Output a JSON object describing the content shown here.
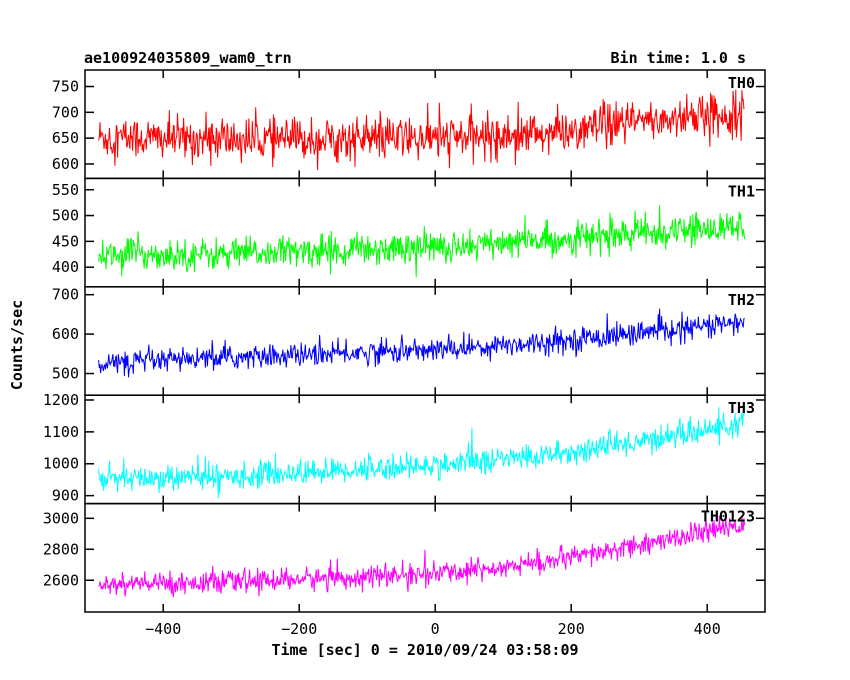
{
  "header": {
    "title": "ae100924035809_wam0_trn",
    "bin_time": "Bin time: 1.0 s"
  },
  "chart_data": {
    "type": "line",
    "title": "ae100924035809_wam0_trn",
    "subtitle": "Bin time: 1.0 s",
    "xlabel": "Time [sec] 0 = 2010/09/24 03:58:09",
    "ylabel": "Counts/sec",
    "xlim": [
      -515,
      485
    ],
    "x_ticks": [
      -400,
      -200,
      0,
      200,
      400
    ],
    "x_tick_labels": [
      "−400",
      "−200",
      "0",
      "200",
      "400"
    ],
    "x_start": -495,
    "x_end": 455,
    "bin_seconds": 1.0,
    "grid": false,
    "panels": [
      {
        "name": "TH0",
        "color": "#ff0000",
        "ylim": [
          572,
          782
        ],
        "y_ticks": [
          600,
          650,
          700,
          750
        ],
        "trend": [
          [
            -495,
            652
          ],
          [
            -300,
            647
          ],
          [
            0,
            650
          ],
          [
            200,
            662
          ],
          [
            300,
            682
          ],
          [
            455,
            700
          ]
        ],
        "noise": 38
      },
      {
        "name": "TH1",
        "color": "#00ff00",
        "ylim": [
          362,
          572
        ],
        "y_ticks": [
          400,
          450,
          500,
          550
        ],
        "trend": [
          [
            -495,
            425
          ],
          [
            -300,
            425
          ],
          [
            0,
            440
          ],
          [
            200,
            455
          ],
          [
            455,
            480
          ]
        ],
        "noise": 28
      },
      {
        "name": "TH2",
        "color": "#0000ff",
        "ylim": [
          445,
          720
        ],
        "y_ticks": [
          500,
          600,
          700
        ],
        "trend": [
          [
            -495,
            525
          ],
          [
            -300,
            540
          ],
          [
            0,
            560
          ],
          [
            200,
            585
          ],
          [
            455,
            630
          ]
        ],
        "noise": 27
      },
      {
        "name": "TH3",
        "color": "#00ffff",
        "ylim": [
          875,
          1215
        ],
        "y_ticks": [
          900,
          1000,
          1100,
          1200
        ],
        "trend": [
          [
            -495,
            950
          ],
          [
            -300,
            960
          ],
          [
            0,
            995
          ],
          [
            200,
            1035
          ],
          [
            455,
            1125
          ]
        ],
        "noise": 36
      },
      {
        "name": "TH0123",
        "color": "#ff00ff",
        "ylim": [
          2395,
          3095
        ],
        "y_ticks": [
          2600,
          2800,
          3000
        ],
        "trend": [
          [
            -495,
            2570
          ],
          [
            -300,
            2590
          ],
          [
            0,
            2640
          ],
          [
            200,
            2740
          ],
          [
            455,
            2960
          ]
        ],
        "noise": 65
      }
    ]
  }
}
